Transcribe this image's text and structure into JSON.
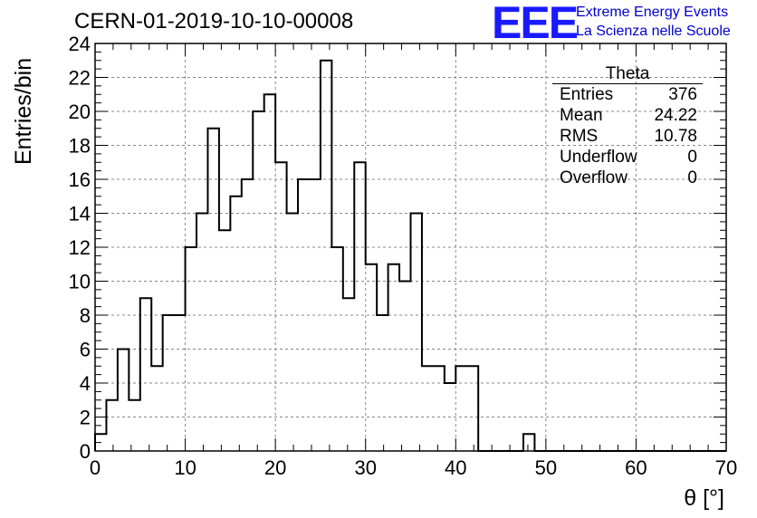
{
  "title": "CERN-01-2019-10-10-00008",
  "brand": {
    "logo": "EEE",
    "line1": "Extreme Energy Events",
    "line2": "La Scienza nelle Scuole",
    "color": "#1a1aff"
  },
  "stats_box": {
    "title": "Theta",
    "rows": [
      {
        "label": "Entries",
        "value": "376"
      },
      {
        "label": "Mean",
        "value": "24.22"
      },
      {
        "label": "RMS",
        "value": "10.78"
      },
      {
        "label": "Underflow",
        "value": "0"
      },
      {
        "label": "Overflow",
        "value": "0"
      }
    ]
  },
  "chart_data": {
    "type": "bar",
    "style": "step-histogram",
    "title": "CERN-01-2019-10-10-00008",
    "xlabel": "θ [°]",
    "ylabel": "Entries/bin",
    "xlim": [
      0,
      70
    ],
    "ylim": [
      0,
      24
    ],
    "grid": true,
    "bin_edges": [
      0,
      1.25,
      2.5,
      3.75,
      5,
      6.25,
      7.5,
      8.75,
      10,
      11.25,
      12.5,
      13.75,
      15,
      16.25,
      17.5,
      18.75,
      20,
      21.25,
      22.5,
      23.75,
      25,
      26.25,
      27.5,
      28.75,
      30,
      31.25,
      32.5,
      33.75,
      35,
      36.25,
      37.5,
      38.75,
      40,
      41.25,
      42.5,
      43.75,
      45,
      46.25,
      47.5,
      48.75,
      50,
      51.25,
      52.5,
      53.75,
      55,
      56.25,
      57.5,
      58.75,
      60,
      61.25,
      62.5,
      63.75,
      65,
      66.25,
      67.5,
      68.75,
      70
    ],
    "values": [
      1,
      3,
      6,
      3,
      9,
      5,
      8,
      8,
      12,
      14,
      19,
      13,
      15,
      16,
      20,
      21,
      17,
      14,
      16,
      16,
      23,
      12,
      9,
      17,
      11,
      8,
      11,
      10,
      14,
      5,
      5,
      4,
      5,
      5,
      0,
      0,
      0,
      0,
      1,
      0,
      0,
      0,
      0,
      0,
      0,
      0,
      0,
      0,
      0,
      0,
      0,
      0,
      0,
      0,
      0,
      0
    ],
    "x_ticks": [
      "0",
      "10",
      "20",
      "30",
      "40",
      "50",
      "60",
      "70"
    ],
    "y_ticks": [
      "0",
      "2",
      "4",
      "6",
      "8",
      "10",
      "12",
      "14",
      "16",
      "18",
      "20",
      "22",
      "24"
    ],
    "color": "#000000"
  }
}
